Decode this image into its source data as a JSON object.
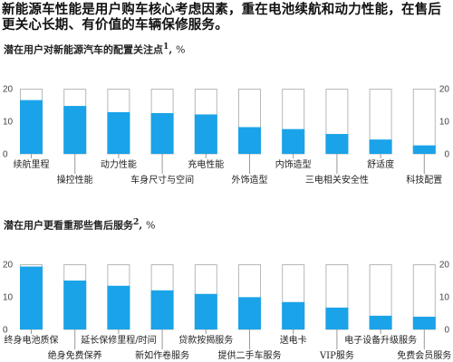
{
  "headline": "新能源车性能是用户购车核心考虑因素，重在电池续航和动力性能，在售后更关心长期、有价值的车辆保修服务。",
  "colors": {
    "bar": "#1aa3e8",
    "outline": "#b8b8b8",
    "axis": "#999999"
  },
  "chart_data": [
    {
      "type": "bar",
      "title": "潜在用户对新能源汽车的配置关注点",
      "footnote_mark": "1",
      "unit": "%",
      "ylim": [
        0,
        20
      ],
      "yticks": [
        0,
        10,
        20
      ],
      "max_box": 20,
      "categories": [
        "续航里程",
        "操控性能",
        "动力性能",
        "车身尺寸与空间",
        "充电性能",
        "外饰造型",
        "内饰造型",
        "三电相关安全性",
        "舒适度",
        "科技配置"
      ],
      "values": [
        16.5,
        14.7,
        12.8,
        12.5,
        12.1,
        8.2,
        7.6,
        6.1,
        4.4,
        2.6
      ]
    },
    {
      "type": "bar",
      "title": "潜在用户更看重那些售后服务",
      "footnote_mark": "2",
      "unit": "%",
      "ylim": [
        0,
        20
      ],
      "yticks": [
        0,
        10,
        20
      ],
      "max_box": 20,
      "categories": [
        "终身电池质保",
        "绝身免费保养",
        "延长保修里程/时间",
        "新如作卷服务",
        "贷款按揭服务",
        "提供二手车服务",
        "送电卡",
        "VIP服务",
        "电子设备升级服务",
        "免费会员服务"
      ],
      "values": [
        19.3,
        15.0,
        13.4,
        12.0,
        10.9,
        9.9,
        8.4,
        6.7,
        4.2,
        3.9
      ]
    }
  ]
}
